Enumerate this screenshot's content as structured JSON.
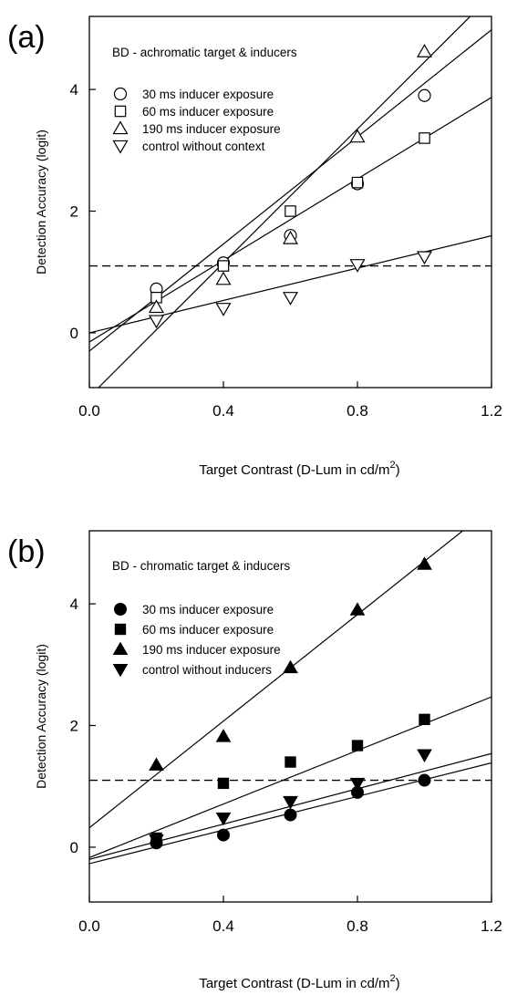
{
  "chart_data": [
    {
      "panel_label": "(a)",
      "type": "scatter",
      "title": "BD - achromatic target & inducers",
      "xlabel": "Target Contrast (D-Lum in cd/m",
      "xlabel_sup": "2",
      "xlabel_end": ")",
      "ylabel": "Detection Accuracy (logit)",
      "xlim": [
        0.0,
        1.2
      ],
      "ylim": [
        -0.9,
        5.2
      ],
      "xticks": [
        "0.0",
        "0.4",
        "0.8",
        "1.2"
      ],
      "xtick_values": [
        0.0,
        0.4,
        0.8,
        1.2
      ],
      "yticks": [
        "0",
        "2",
        "4"
      ],
      "ytick_values": [
        0,
        2,
        4
      ],
      "grid": false,
      "legend_position": "top-left",
      "reference_line": 1.1,
      "x": [
        0.2,
        0.4,
        0.6,
        0.8,
        1.0
      ],
      "series": [
        {
          "name": "30 ms inducer exposure",
          "marker": "circle-open",
          "values": [
            0.72,
            1.15,
            1.6,
            2.45,
            3.9
          ],
          "fit": [
            -0.3,
            4.4
          ]
        },
        {
          "name": "60 ms inducer exposure",
          "marker": "square-open",
          "values": [
            0.58,
            1.1,
            2.0,
            2.47,
            3.2
          ],
          "fit": [
            -0.15,
            3.35
          ]
        },
        {
          "name": "190 ms inducer exposure",
          "marker": "triangle-up-open",
          "values": [
            0.42,
            0.88,
            1.55,
            3.22,
            4.62
          ],
          "fit": [
            -1.05,
            5.5
          ]
        },
        {
          "name": "control without context",
          "marker": "triangle-down-open",
          "values": [
            0.2,
            0.4,
            0.58,
            1.12,
            1.25
          ],
          "fit": [
            0.0,
            1.33
          ]
        }
      ]
    },
    {
      "panel_label": "(b)",
      "type": "scatter",
      "title": "BD - chromatic target & inducers",
      "xlabel": "Target Contrast (D-Lum in cd/m",
      "xlabel_sup": "2",
      "xlabel_end": ")",
      "ylabel": "Detection Accuracy (logit)",
      "xlim": [
        0.0,
        1.2
      ],
      "ylim": [
        -0.9,
        5.2
      ],
      "xticks": [
        "0.0",
        "0.4",
        "0.8",
        "1.2"
      ],
      "xtick_values": [
        0.0,
        0.4,
        0.8,
        1.2
      ],
      "yticks": [
        "0",
        "2",
        "4"
      ],
      "ytick_values": [
        0,
        2,
        4
      ],
      "grid": false,
      "legend_position": "top-left",
      "reference_line": 1.1,
      "x": [
        0.2,
        0.4,
        0.6,
        0.8,
        1.0
      ],
      "series": [
        {
          "name": "30 ms inducer exposure",
          "marker": "circle-filled",
          "values": [
            0.07,
            0.2,
            0.53,
            0.9,
            1.1
          ],
          "fit": [
            -0.27,
            1.38
          ]
        },
        {
          "name": "60 ms inducer exposure",
          "marker": "square-filled",
          "values": [
            0.15,
            1.05,
            1.4,
            1.67,
            2.1
          ],
          "fit": [
            -0.17,
            2.2
          ]
        },
        {
          "name": "190 ms inducer exposure",
          "marker": "triangle-up-filled",
          "values": [
            1.35,
            1.82,
            2.95,
            3.9,
            4.65
          ],
          "fit": [
            0.32,
            4.38
          ]
        },
        {
          "name": "control without inducers",
          "marker": "triangle-down-filled",
          "values": [
            0.12,
            0.48,
            0.75,
            1.05,
            1.52
          ],
          "fit": [
            -0.2,
            1.45
          ]
        }
      ]
    }
  ]
}
